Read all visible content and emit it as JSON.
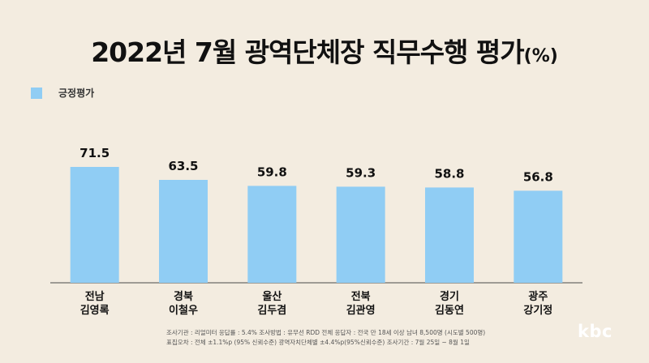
{
  "title": {
    "main": "2022년 7월 광역단체장 직무수행 평가",
    "unit": "(%)"
  },
  "legend": {
    "label": "긍정평가",
    "color": "#90cdf4"
  },
  "footer": {
    "line1": "조사기관 : 리얼미터    응답률 : 5.4%    조사방법 : 유무선 RDD    전체 응답자 : 전국 만 18세 이상 남녀 8,500명 (시도별 500명)",
    "line2": "표집오차 : 전체 ±1.1%p (95% 신뢰수준) 광역자치단체별 ±4.4%p(95%신뢰수준)    조사기간 : 7월 25일 ~ 8월 1일"
  },
  "logo": "kbc",
  "chart_data": {
    "type": "bar",
    "categories": [
      [
        "전남",
        "김영록"
      ],
      [
        "경북",
        "이철우"
      ],
      [
        "울산",
        "김두겸"
      ],
      [
        "전북",
        "김관영"
      ],
      [
        "경기",
        "김동연"
      ],
      [
        "광주",
        "강기정"
      ]
    ],
    "series": [
      {
        "name": "긍정평가",
        "values": [
          71.5,
          63.5,
          59.8,
          59.3,
          58.8,
          56.8
        ]
      }
    ],
    "ylim": [
      0,
      100
    ],
    "grid": false,
    "legend_position": "top-left",
    "bar_color": "#90cdf4"
  }
}
